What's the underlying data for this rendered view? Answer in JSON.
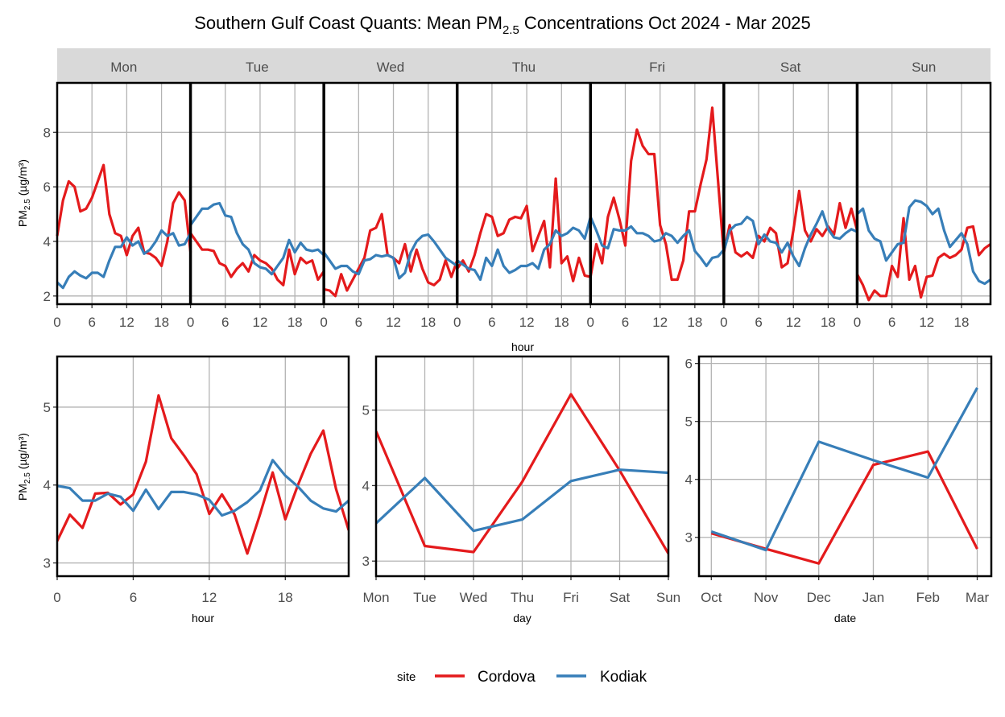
{
  "title": {
    "pre": "Southern Gulf Coast Quants: Mean PM",
    "sub": "2.5",
    "post": " Concentrations Oct 2024 - Mar 2025"
  },
  "ylabel": {
    "pre": "PM",
    "sub": "2.5",
    "post": " (µg/m³)"
  },
  "colors": {
    "Cordova": "#e41a1c",
    "Kodiak": "#377eb8"
  },
  "legend": {
    "title": "site",
    "items": [
      "Cordova",
      "Kodiak"
    ],
    "position": "bottom"
  },
  "chart_data": [
    {
      "type": "line",
      "xlabel": "hour",
      "facets": [
        "Mon",
        "Tue",
        "Wed",
        "Thu",
        "Fri",
        "Sat",
        "Sun"
      ],
      "x": [
        0,
        1,
        2,
        3,
        4,
        5,
        6,
        7,
        8,
        9,
        10,
        11,
        12,
        13,
        14,
        15,
        16,
        17,
        18,
        19,
        20,
        21,
        22,
        23
      ],
      "xticks": [
        "0",
        "6",
        "12",
        "18"
      ],
      "yticks": [
        "2",
        "4",
        "6",
        "8"
      ],
      "ylim": [
        1.7,
        9.81
      ],
      "grid": true,
      "series": [
        {
          "name": "Cordova",
          "values": [
            [
              4.2,
              5.5,
              6.2,
              6.0,
              5.1,
              5.2,
              5.6,
              6.2,
              6.8,
              5.0,
              4.3,
              4.2,
              3.5,
              4.2,
              4.5,
              3.6,
              3.55,
              3.4,
              3.1,
              4.0,
              5.4,
              5.8,
              5.5,
              3.6
            ],
            [
              4.3,
              4.0,
              3.7,
              3.7,
              3.65,
              3.2,
              3.1,
              2.7,
              3.0,
              3.2,
              2.9,
              3.5,
              3.3,
              3.2,
              3.0,
              2.6,
              2.4,
              3.7,
              2.8,
              3.4,
              3.2,
              3.3,
              2.6,
              2.9
            ],
            [
              2.25,
              2.2,
              2.0,
              2.8,
              2.2,
              2.6,
              3.0,
              3.4,
              4.4,
              4.5,
              5.0,
              3.5,
              3.4,
              3.2,
              3.9,
              2.9,
              3.7,
              3.0,
              2.5,
              2.4,
              2.6,
              3.3,
              2.7,
              3.3
            ],
            [
              3.0,
              3.3,
              2.9,
              3.5,
              4.3,
              5.0,
              4.9,
              4.2,
              4.3,
              4.8,
              4.9,
              4.85,
              5.3,
              3.65,
              4.2,
              4.75,
              3.05,
              6.3,
              3.2,
              3.45,
              2.55,
              3.4,
              2.75,
              2.7
            ],
            [
              2.7,
              3.9,
              3.2,
              4.9,
              5.6,
              4.8,
              3.85,
              6.95,
              8.1,
              7.5,
              7.2,
              7.2,
              4.6,
              3.9,
              2.6,
              2.6,
              3.3,
              5.1,
              5.1,
              6.1,
              7.0,
              8.9,
              6.2,
              3.5
            ],
            [
              3.6,
              4.6,
              3.6,
              3.45,
              3.6,
              3.4,
              4.2,
              4.0,
              4.5,
              4.3,
              3.05,
              3.2,
              4.4,
              5.85,
              4.4,
              4.0,
              4.45,
              4.2,
              4.55,
              4.25,
              5.4,
              4.5,
              5.2,
              4.4
            ],
            [
              2.8,
              2.4,
              1.85,
              2.2,
              2.0,
              2.0,
              3.1,
              2.7,
              4.85,
              2.6,
              3.1,
              1.95,
              2.7,
              2.75,
              3.4,
              3.55,
              3.4,
              3.5,
              3.7,
              4.5,
              4.55,
              3.5,
              3.75,
              3.9
            ]
          ]
        },
        {
          "name": "Kodiak",
          "values": [
            [
              2.5,
              2.3,
              2.7,
              2.9,
              2.75,
              2.65,
              2.85,
              2.85,
              2.7,
              3.3,
              3.8,
              3.8,
              4.15,
              3.85,
              4.0,
              3.55,
              3.7,
              4.0,
              4.4,
              4.2,
              4.3,
              3.85,
              3.9,
              4.3
            ],
            [
              4.6,
              4.9,
              5.2,
              5.2,
              5.35,
              5.4,
              4.95,
              4.9,
              4.3,
              3.9,
              3.7,
              3.2,
              3.05,
              3.0,
              2.8,
              3.1,
              3.4,
              4.05,
              3.6,
              3.95,
              3.7,
              3.65,
              3.7,
              3.5
            ],
            [
              3.6,
              3.3,
              3.0,
              3.1,
              3.1,
              2.9,
              2.8,
              3.3,
              3.35,
              3.5,
              3.45,
              3.5,
              3.4,
              2.65,
              2.85,
              3.6,
              4.0,
              4.2,
              4.25,
              4.0,
              3.7,
              3.4,
              3.25,
              3.1
            ],
            [
              3.3,
              3.15,
              3.0,
              2.95,
              2.6,
              3.4,
              3.1,
              3.7,
              3.1,
              2.85,
              2.95,
              3.1,
              3.1,
              3.2,
              3.0,
              3.7,
              3.9,
              4.4,
              4.2,
              4.3,
              4.5,
              4.4,
              4.1,
              4.9
            ],
            [
              4.9,
              4.4,
              3.85,
              3.75,
              4.45,
              4.4,
              4.4,
              4.55,
              4.3,
              4.3,
              4.2,
              4.0,
              4.05,
              4.3,
              4.2,
              3.95,
              4.2,
              4.4,
              3.65,
              3.4,
              3.1,
              3.4,
              3.45,
              3.7
            ],
            [
              3.65,
              4.4,
              4.6,
              4.65,
              4.9,
              4.75,
              3.9,
              4.25,
              4.0,
              3.95,
              3.6,
              3.95,
              3.45,
              3.1,
              3.75,
              4.25,
              4.65,
              5.1,
              4.45,
              4.15,
              4.1,
              4.3,
              4.45,
              4.35
            ],
            [
              5.0,
              5.2,
              4.4,
              4.1,
              4.0,
              3.3,
              3.6,
              3.9,
              3.95,
              5.25,
              5.5,
              5.45,
              5.3,
              5.0,
              5.2,
              4.4,
              3.8,
              4.05,
              4.3,
              3.9,
              2.9,
              2.55,
              2.45,
              2.6
            ]
          ]
        }
      ]
    },
    {
      "type": "line",
      "xlabel": "hour",
      "x": [
        0,
        1,
        2,
        3,
        4,
        5,
        6,
        7,
        8,
        9,
        10,
        11,
        12,
        13,
        14,
        15,
        16,
        17,
        18,
        19,
        20,
        21,
        22,
        23
      ],
      "xticks": [
        "0",
        "6",
        "12",
        "18"
      ],
      "yticks": [
        "3",
        "4",
        "5"
      ],
      "ylim": [
        2.83,
        5.65
      ],
      "grid": true,
      "series": [
        {
          "name": "Cordova",
          "values": [
            3.28,
            3.62,
            3.45,
            3.89,
            3.9,
            3.75,
            3.88,
            4.3,
            5.15,
            4.6,
            4.38,
            4.14,
            3.63,
            3.88,
            3.62,
            3.12,
            3.62,
            4.16,
            3.56,
            4.0,
            4.4,
            4.7,
            3.95,
            3.42
          ]
        },
        {
          "name": "Kodiak",
          "values": [
            3.99,
            3.96,
            3.8,
            3.8,
            3.89,
            3.85,
            3.67,
            3.94,
            3.69,
            3.91,
            3.91,
            3.88,
            3.81,
            3.61,
            3.67,
            3.78,
            3.93,
            4.32,
            4.12,
            3.98,
            3.8,
            3.7,
            3.66,
            3.8
          ]
        }
      ]
    },
    {
      "type": "line",
      "xlabel": "day",
      "categories": [
        "Mon",
        "Tue",
        "Wed",
        "Thu",
        "Fri",
        "Sat",
        "Sun"
      ],
      "yticks": [
        "3",
        "4",
        "5"
      ],
      "ylim": [
        2.8,
        5.71
      ],
      "grid": true,
      "series": [
        {
          "name": "Cordova",
          "values": [
            4.72,
            3.2,
            3.12,
            4.05,
            5.21,
            4.2,
            3.1
          ]
        },
        {
          "name": "Kodiak",
          "values": [
            3.5,
            4.1,
            3.4,
            3.55,
            4.06,
            4.21,
            4.17
          ]
        }
      ]
    },
    {
      "type": "line",
      "xlabel": "date",
      "x": [
        "2024-10-01",
        "2024-11-01",
        "2024-12-01",
        "2025-01-01",
        "2025-02-01",
        "2025-03-01"
      ],
      "xticks": [
        "Oct",
        "Nov",
        "Dec",
        "Jan",
        "Feb",
        "Mar"
      ],
      "xlim": [
        "2024-09-24",
        "2025-03-09"
      ],
      "yticks": [
        "3",
        "4",
        "5",
        "6"
      ],
      "ylim": [
        2.33,
        6.12
      ],
      "grid": true,
      "series": [
        {
          "name": "Cordova",
          "values": [
            3.07,
            2.8,
            2.55,
            4.25,
            4.48,
            2.8
          ]
        },
        {
          "name": "Kodiak",
          "values": [
            3.1,
            2.78,
            4.65,
            4.33,
            4.03,
            5.58
          ]
        }
      ]
    }
  ]
}
